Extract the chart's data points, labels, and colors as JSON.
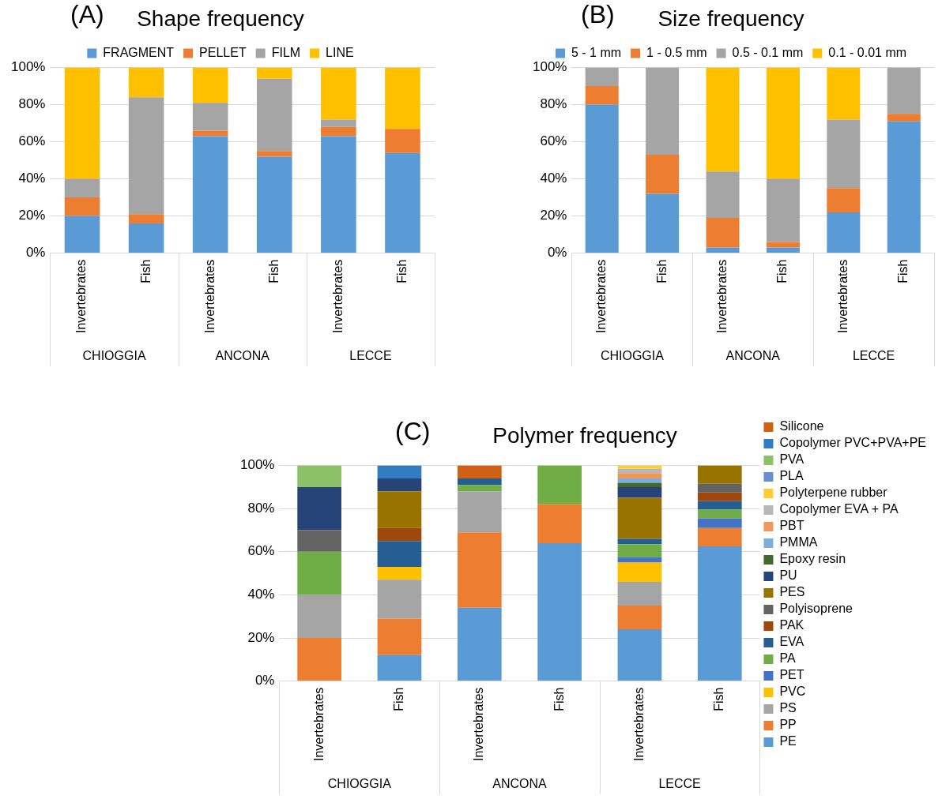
{
  "chart_data": [
    {
      "type": "bar",
      "stacked": true,
      "title": "Shape frequency",
      "annotations": [
        "(A)",
        "CHIOGGIA",
        "ANCONA",
        "LECCE"
      ],
      "categories": [
        "Invertebrates",
        "Fish",
        "Invertebrates",
        "Fish",
        "Invertebrates",
        "Fish"
      ],
      "ylim": [
        0,
        100
      ],
      "yticks": [
        {
          "value": 0,
          "label": "0%"
        },
        {
          "value": 20,
          "label": "20%"
        },
        {
          "value": 40,
          "label": "40%"
        },
        {
          "value": 60,
          "label": "60%"
        },
        {
          "value": 80,
          "label": "80%"
        },
        {
          "value": 100,
          "label": "100%"
        }
      ],
      "grid": "y",
      "legend": "top",
      "series": [
        {
          "name": "FRAGMENT",
          "color": "#5b9bd5",
          "values": [
            20,
            16,
            63,
            52,
            63,
            54
          ]
        },
        {
          "name": "PELLET",
          "color": "#ed7d31",
          "values": [
            10,
            5,
            3,
            3,
            5,
            13
          ]
        },
        {
          "name": "FILM",
          "color": "#a5a5a5",
          "values": [
            10,
            63,
            15,
            39,
            4,
            0
          ]
        },
        {
          "name": "LINE",
          "color": "#ffc000",
          "values": [
            60,
            16,
            19,
            6,
            28,
            33
          ]
        }
      ]
    },
    {
      "type": "bar",
      "stacked": true,
      "title": "Size frequency",
      "annotations": [
        "(B)",
        "CHIOGGIA",
        "ANCONA",
        "LECCE"
      ],
      "categories": [
        "Invertebrates",
        "Fish",
        "Invertebrates",
        "Fish",
        "Invertebrates",
        "Fish"
      ],
      "ylim": [
        0,
        100
      ],
      "yticks": [
        {
          "value": 0,
          "label": "0%"
        },
        {
          "value": 20,
          "label": "20%"
        },
        {
          "value": 40,
          "label": "40%"
        },
        {
          "value": 60,
          "label": "60%"
        },
        {
          "value": 80,
          "label": "80%"
        },
        {
          "value": 100,
          "label": "100%"
        }
      ],
      "grid": "y",
      "legend": "top",
      "series": [
        {
          "name": "5 - 1 mm",
          "color": "#5b9bd5",
          "values": [
            80,
            32,
            3,
            3,
            22,
            71
          ]
        },
        {
          "name": "1 - 0.5 mm",
          "color": "#ed7d31",
          "values": [
            10,
            21,
            16,
            3,
            13,
            4
          ]
        },
        {
          "name": "0.5 - 0.1 mm",
          "color": "#a5a5a5",
          "values": [
            10,
            47,
            25,
            34,
            37,
            25
          ]
        },
        {
          "name": "0.1 - 0.01 mm",
          "color": "#ffc000",
          "values": [
            0,
            0,
            56,
            60,
            28,
            0
          ]
        }
      ]
    },
    {
      "type": "bar",
      "stacked": true,
      "title": "Polymer frequency",
      "annotations": [
        "(C)",
        "CHIOGGIA",
        "ANCONA",
        "LECCE"
      ],
      "categories": [
        "Invertebrates",
        "Fish",
        "Invertebrates",
        "Fish",
        "Invertebrates",
        "Fish"
      ],
      "ylim": [
        0,
        100
      ],
      "yticks": [
        {
          "value": 0,
          "label": "0%"
        },
        {
          "value": 20,
          "label": "20%"
        },
        {
          "value": 40,
          "label": "40%"
        },
        {
          "value": 60,
          "label": "60%"
        },
        {
          "value": 80,
          "label": "80%"
        },
        {
          "value": 100,
          "label": "100%"
        }
      ],
      "grid": "y",
      "legend": "right",
      "series": [
        {
          "name": "PE",
          "color": "#5b9bd5",
          "values": [
            0,
            12,
            34,
            64,
            24,
            62.5
          ]
        },
        {
          "name": "PP",
          "color": "#ed7d31",
          "values": [
            20,
            17,
            35,
            18,
            11,
            8.5
          ]
        },
        {
          "name": "PS",
          "color": "#a5a5a5",
          "values": [
            20,
            18,
            19,
            0,
            11,
            0
          ]
        },
        {
          "name": "PVC",
          "color": "#ffc000",
          "values": [
            0,
            6,
            0,
            0,
            9,
            0
          ]
        },
        {
          "name": "PET",
          "color": "#4472c4",
          "values": [
            0,
            0,
            0,
            0,
            2.5,
            4.5
          ]
        },
        {
          "name": "PA",
          "color": "#70ad47",
          "values": [
            20,
            0,
            3,
            18,
            6,
            4
          ]
        },
        {
          "name": "EVA",
          "color": "#255e91",
          "values": [
            0,
            12,
            3,
            0,
            2.5,
            4
          ]
        },
        {
          "name": "PAK",
          "color": "#9e480e",
          "values": [
            0,
            6,
            0,
            0,
            0,
            4
          ]
        },
        {
          "name": "Polyisoprene",
          "color": "#636363",
          "values": [
            10,
            0,
            0,
            0,
            0,
            4
          ]
        },
        {
          "name": "PES",
          "color": "#997300",
          "values": [
            0,
            17,
            0,
            0,
            19,
            8.5
          ]
        },
        {
          "name": "PU",
          "color": "#264478",
          "values": [
            20,
            6,
            0,
            0,
            5,
            0
          ]
        },
        {
          "name": "Epoxy resin",
          "color": "#43682b",
          "values": [
            0,
            0,
            0,
            0,
            2,
            0
          ]
        },
        {
          "name": "PMMA",
          "color": "#7cafdd",
          "values": [
            0,
            0,
            0,
            0,
            2,
            0
          ]
        },
        {
          "name": "PBT",
          "color": "#f1975a",
          "values": [
            0,
            0,
            0,
            0,
            2.5,
            0
          ]
        },
        {
          "name": "Copolymer EVA + PA",
          "color": "#b7b7b7",
          "values": [
            0,
            0,
            0,
            0,
            2,
            0
          ]
        },
        {
          "name": "Polyterpene rubber",
          "color": "#ffcd33",
          "values": [
            0,
            0,
            0,
            0,
            1.5,
            0
          ]
        },
        {
          "name": "PLA",
          "color": "#698ed0",
          "values": [
            0,
            0,
            0,
            0,
            0,
            0
          ]
        },
        {
          "name": "PVA",
          "color": "#8cc168",
          "values": [
            10,
            0,
            0,
            0,
            0,
            0
          ]
        },
        {
          "name": "Copolymer PVC+PVA+PE",
          "color": "#327dc2",
          "values": [
            0,
            6,
            0,
            0,
            0,
            0
          ]
        },
        {
          "name": "Silicone",
          "color": "#d26012",
          "values": [
            0,
            0,
            6,
            0,
            0,
            0
          ]
        }
      ]
    }
  ]
}
